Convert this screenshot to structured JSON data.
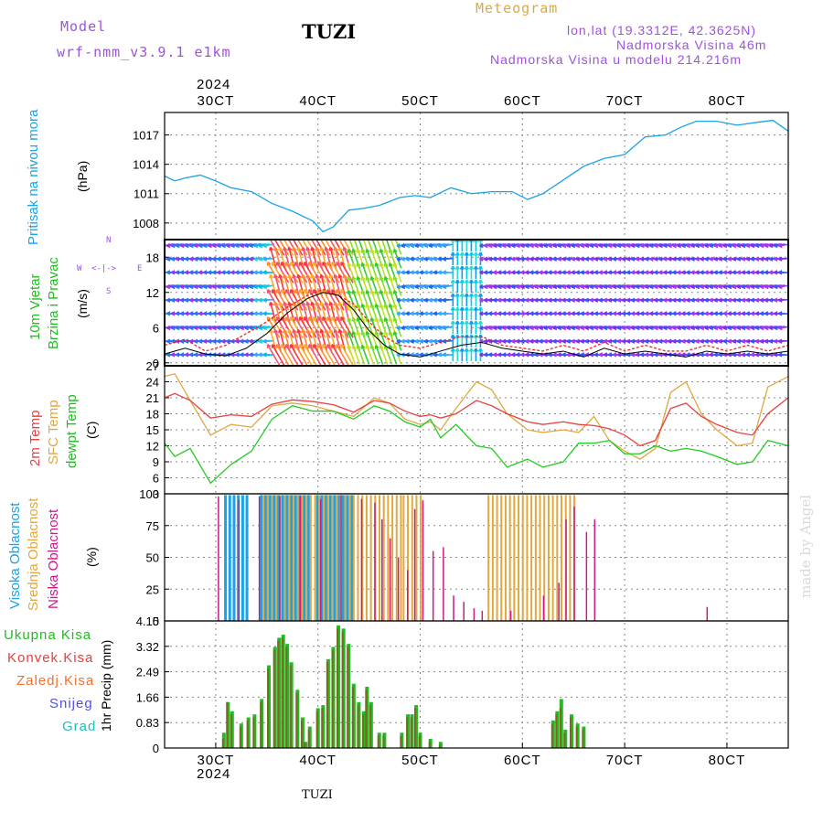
{
  "header": {
    "model_label": "Model",
    "model_name": "wrf-nmm_v3.9.1  e1km",
    "station": "TUZI",
    "title": "Meteogram",
    "coords": "lon,lat (19.3312E, 42.3625N)",
    "elevation": "Nadmorska Visina 46m",
    "model_elevation": "Nadmorska Visina u modelu 214.216m",
    "watermark": "made by Angel",
    "footer_station": "TUZI"
  },
  "colors": {
    "pressure": "#1aa3e6",
    "wind_label": "#22bb22",
    "temp2m": "#e64040",
    "sfc": "#e0a840",
    "dewpt": "#22cc22",
    "high_cloud": "#1aa3e6",
    "mid_cloud": "#e0a840",
    "low_cloud": "#cc1a88",
    "total_precip": "#22bb22",
    "conv_precip": "#e64040",
    "frozen": "#f07030",
    "snow": "#5050e0",
    "hail": "#22bbbb",
    "header_purple": "#a050e0",
    "header_orange": "#e0a840"
  },
  "chart_data": {
    "x": {
      "top_labels": [
        "30CT",
        "40CT",
        "50CT",
        "60CT",
        "70CT",
        "80CT"
      ],
      "year": "2024",
      "range_days": [
        2.5,
        8.6
      ],
      "tick_days": [
        3,
        4,
        5,
        6,
        7,
        8
      ]
    },
    "pressure": {
      "type": "line",
      "ylabel": "Pritisak na nivou mora",
      "unit": "(hPa)",
      "yticks": [
        1008,
        1011,
        1014,
        1017
      ],
      "ylim": [
        1006.3,
        1019.3
      ],
      "x": [
        2.5,
        2.6,
        2.7,
        2.85,
        3.0,
        3.15,
        3.35,
        3.55,
        3.75,
        3.95,
        4.05,
        4.15,
        4.3,
        4.45,
        4.6,
        4.8,
        4.95,
        5.1,
        5.3,
        5.5,
        5.7,
        5.9,
        6.05,
        6.2,
        6.4,
        6.6,
        6.8,
        7.0,
        7.2,
        7.4,
        7.55,
        7.7,
        7.9,
        8.1,
        8.3,
        8.45,
        8.6
      ],
      "values": [
        1012.8,
        1012.3,
        1012.6,
        1012.9,
        1012.3,
        1011.6,
        1011.2,
        1010.0,
        1009.2,
        1008.2,
        1007.1,
        1007.6,
        1009.3,
        1009.5,
        1009.8,
        1010.6,
        1010.8,
        1010.6,
        1011.6,
        1011.0,
        1011.2,
        1011.2,
        1010.4,
        1011.0,
        1012.4,
        1013.8,
        1014.6,
        1015.0,
        1016.8,
        1017.0,
        1017.8,
        1018.4,
        1018.4,
        1018.0,
        1018.3,
        1018.5,
        1017.4
      ]
    },
    "wind": {
      "type": "line",
      "labels": [
        "10m Vjetar",
        "Brzina i Pravac"
      ],
      "unit": "(m/s)",
      "compass": {
        "n": "N",
        "w": "W",
        "e": "E",
        "s": "S",
        "arrow": "<-|->"
      },
      "yticks": [
        0,
        6,
        12,
        18
      ],
      "ylim": [
        -0.5,
        21
      ],
      "x": [
        2.5,
        2.7,
        2.9,
        3.1,
        3.3,
        3.5,
        3.7,
        3.9,
        4.05,
        4.2,
        4.35,
        4.5,
        4.65,
        4.8,
        5.0,
        5.2,
        5.4,
        5.6,
        5.8,
        6.0,
        6.2,
        6.4,
        6.6,
        6.8,
        7.0,
        7.2,
        7.4,
        7.6,
        7.8,
        8.0,
        8.2,
        8.4,
        8.6
      ],
      "speed": [
        1.5,
        2.5,
        1.5,
        1.2,
        2.5,
        5,
        8.5,
        11,
        12,
        11.5,
        9,
        5.5,
        3,
        1.5,
        1,
        2,
        3,
        3.5,
        2.5,
        2,
        1.5,
        2,
        1,
        2.5,
        1.5,
        2,
        1.5,
        1,
        2,
        1.5,
        2,
        1.5,
        2
      ],
      "gust": [
        3,
        4,
        2,
        3,
        5,
        7,
        9.5,
        11.5,
        12.5,
        11.5,
        10,
        7,
        4.5,
        3,
        2.5,
        3.5,
        4.5,
        4.5,
        3,
        2.5,
        2,
        3,
        2,
        3.5,
        2,
        3,
        2,
        2,
        3,
        2,
        3,
        2,
        3
      ]
    },
    "temperature": {
      "type": "line",
      "labels": [
        "2m Temp",
        "SFC Temp",
        "dewpt Temp"
      ],
      "unit": "(C)",
      "yticks": [
        3,
        6,
        9,
        12,
        15,
        18,
        21,
        24,
        27
      ],
      "ylim": [
        3,
        27
      ],
      "x": [
        2.5,
        2.6,
        2.75,
        2.95,
        3.15,
        3.35,
        3.55,
        3.75,
        3.95,
        4.15,
        4.35,
        4.55,
        4.7,
        4.85,
        5.0,
        5.1,
        5.2,
        5.35,
        5.55,
        5.7,
        5.85,
        6.05,
        6.2,
        6.4,
        6.55,
        6.7,
        6.85,
        7.0,
        7.15,
        7.3,
        7.45,
        7.6,
        7.75,
        7.9,
        8.1,
        8.25,
        8.4,
        8.6
      ],
      "t2m": [
        21,
        21.8,
        20.5,
        17.2,
        17.8,
        17.5,
        19.8,
        20.6,
        20.3,
        19.7,
        18.3,
        20.5,
        20.0,
        18.5,
        17.5,
        17.8,
        17.2,
        18.0,
        20.5,
        19.5,
        18.0,
        16.5,
        16.0,
        16.5,
        16.0,
        15.8,
        15.2,
        14.0,
        12.0,
        13.0,
        19.0,
        20.0,
        17.5,
        16.0,
        14.5,
        14.0,
        18.0,
        21.0
      ],
      "sfc": [
        25,
        25.5,
        20.5,
        14.0,
        16.0,
        15.5,
        19.5,
        20.0,
        19.5,
        18.5,
        17.5,
        21.0,
        20.0,
        17.0,
        16.0,
        16.5,
        15.0,
        19.0,
        24.0,
        22.5,
        18.0,
        15.0,
        14.5,
        15.0,
        14.5,
        17.5,
        13.0,
        11.0,
        9.5,
        11.5,
        22.0,
        24.0,
        18.0,
        15.0,
        12.0,
        12.5,
        23.0,
        25.0
      ],
      "dewpt": [
        12.5,
        10.0,
        11.5,
        5.0,
        8.5,
        11.0,
        17.0,
        19.5,
        18.5,
        18.5,
        17.0,
        19.5,
        18.5,
        16.5,
        15.5,
        17.0,
        13.5,
        16.0,
        12.0,
        11.5,
        8.0,
        9.5,
        8.0,
        9.0,
        12.5,
        12.5,
        13.0,
        10.5,
        10.5,
        12.0,
        11.0,
        11.5,
        11.0,
        10.0,
        8.5,
        9.0,
        13.0,
        12.0
      ]
    },
    "clouds": {
      "type": "bar",
      "labels": [
        "Visoka Oblacnost",
        "Srednja Oblacnost",
        "Niska Oblacnost"
      ],
      "unit": "(%)",
      "yticks": [
        0,
        25,
        50,
        75,
        100
      ],
      "ylim": [
        0,
        100
      ],
      "high_ranges": [
        [
          3.1,
          3.35
        ],
        [
          3.45,
          3.95
        ],
        [
          4.0,
          4.35
        ]
      ],
      "mid_ranges": [
        [
          3.45,
          4.8
        ],
        [
          4.82,
          5.0
        ],
        [
          5.65,
          6.5
        ]
      ],
      "low": [
        [
          3.02,
          98
        ],
        [
          3.22,
          95
        ],
        [
          3.42,
          98
        ],
        [
          3.62,
          98
        ],
        [
          3.82,
          98
        ],
        [
          4.02,
          96
        ],
        [
          4.22,
          99
        ],
        [
          4.42,
          96
        ],
        [
          4.55,
          93
        ],
        [
          4.62,
          80
        ],
        [
          4.7,
          65
        ],
        [
          4.78,
          50
        ],
        [
          4.87,
          40
        ],
        [
          4.94,
          88
        ],
        [
          5.02,
          95
        ],
        [
          5.12,
          55
        ],
        [
          5.22,
          58
        ],
        [
          5.32,
          20
        ],
        [
          5.42,
          15
        ],
        [
          5.52,
          10
        ],
        [
          5.6,
          8
        ],
        [
          5.88,
          8
        ],
        [
          6.2,
          20
        ],
        [
          6.35,
          30
        ],
        [
          6.42,
          80
        ],
        [
          6.5,
          90
        ],
        [
          6.62,
          70
        ],
        [
          6.7,
          80
        ],
        [
          7.8,
          11
        ]
      ]
    },
    "precip": {
      "type": "bar",
      "labels": [
        "Ukupna Kisa",
        "Konvek.Kisa",
        "Zaledj.Kisa",
        "Snijeg",
        "Grad"
      ],
      "ylabel": "1hr Precip (mm)",
      "yticks": [
        0,
        0.83,
        1.66,
        2.49,
        3.32,
        4.15
      ],
      "ylim": [
        0,
        4.15
      ],
      "x": [
        3.08,
        3.12,
        3.16,
        3.25,
        3.32,
        3.38,
        3.45,
        3.52,
        3.58,
        3.62,
        3.66,
        3.7,
        3.74,
        3.8,
        3.85,
        3.88,
        3.92,
        4.0,
        4.05,
        4.1,
        4.15,
        4.2,
        4.25,
        4.3,
        4.35,
        4.4,
        4.45,
        4.48,
        4.52,
        4.6,
        4.65,
        4.82,
        4.88,
        4.92,
        4.96,
        5.0,
        5.1,
        5.2,
        6.3,
        6.34,
        6.38,
        6.42,
        6.48,
        6.54,
        6.6
      ],
      "total": [
        0.5,
        1.5,
        1.2,
        0.8,
        1.0,
        1.1,
        1.6,
        2.7,
        3.3,
        3.6,
        3.7,
        3.4,
        2.8,
        1.9,
        1.0,
        0.2,
        0.7,
        1.3,
        1.4,
        2.9,
        3.3,
        4.0,
        3.9,
        3.4,
        2.1,
        1.5,
        1.2,
        2.0,
        1.5,
        0.5,
        0.5,
        0.5,
        1.1,
        1.1,
        1.4,
        0.5,
        0.3,
        0.2,
        0.9,
        1.2,
        1.6,
        0.6,
        1.1,
        0.8,
        0.7
      ],
      "convective": [
        0.3,
        1.5,
        1.1,
        0.7,
        0.9,
        1.0,
        1.5,
        2.6,
        3.2,
        3.5,
        3.6,
        3.3,
        2.7,
        1.8,
        0.9,
        0.2,
        0.6,
        1.2,
        1.3,
        2.8,
        3.2,
        3.9,
        3.8,
        3.3,
        2.0,
        1.4,
        1.1,
        1.9,
        1.4,
        0.4,
        0.4,
        0.4,
        1.0,
        1.0,
        1.3,
        0.4,
        0.2,
        0.1,
        0.8,
        1.1,
        1.3,
        0.5,
        1.0,
        0.7,
        0.6
      ]
    }
  }
}
